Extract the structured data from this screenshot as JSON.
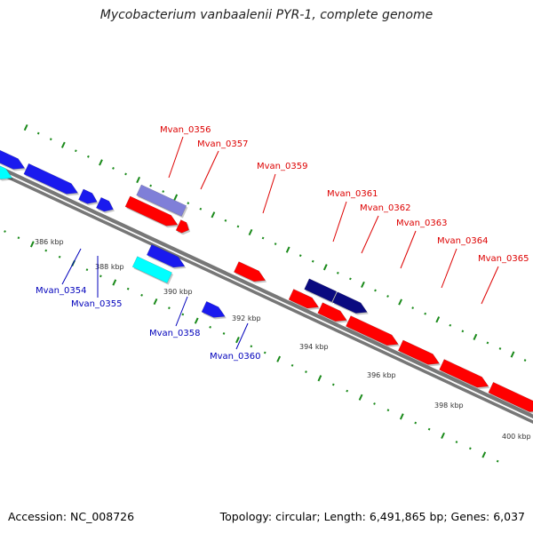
{
  "title": "Mycobacterium vanbaalenii PYR-1, complete genome",
  "footer": {
    "accession": "Accession: NC_008726",
    "summary": "Topology: circular; Length: 6,491,865 bp; Genes: 6,037"
  },
  "ruler": {
    "unit": "kbp",
    "labels": [
      "386 kbp",
      "388 kbp",
      "390 kbp",
      "392 kbp",
      "394 kbp",
      "396 kbp",
      "398 kbp",
      "400 kbp"
    ]
  },
  "colors": {
    "strand_line": "#777777",
    "ruler_ticks": "#1a8a1a",
    "forward_label": "#dd0000",
    "reverse_label": "#0000bb",
    "red": "#ff0000",
    "blue": "#1a1aee",
    "cyan": "#00ffff",
    "purple": "#7f7fd8",
    "navy": "#0a0a80"
  },
  "genes": {
    "labeled": [
      {
        "name": "Mvan_0354",
        "strand": "reverse"
      },
      {
        "name": "Mvan_0355",
        "strand": "reverse"
      },
      {
        "name": "Mvan_0356",
        "strand": "forward"
      },
      {
        "name": "Mvan_0357",
        "strand": "forward"
      },
      {
        "name": "Mvan_0358",
        "strand": "reverse"
      },
      {
        "name": "Mvan_0359",
        "strand": "forward"
      },
      {
        "name": "Mvan_0360",
        "strand": "reverse"
      },
      {
        "name": "Mvan_0361",
        "strand": "forward"
      },
      {
        "name": "Mvan_0362",
        "strand": "forward"
      },
      {
        "name": "Mvan_0363",
        "strand": "forward"
      },
      {
        "name": "Mvan_0364",
        "strand": "forward"
      },
      {
        "name": "Mvan_0365",
        "strand": "forward"
      }
    ]
  }
}
